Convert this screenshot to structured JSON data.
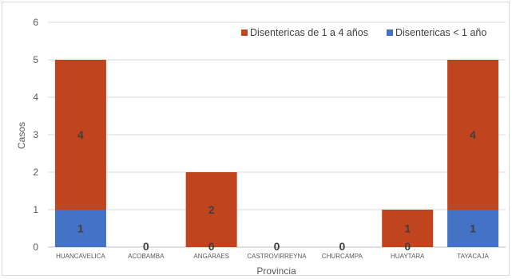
{
  "chart_data": {
    "type": "bar",
    "stacked": true,
    "categories": [
      "HUANCAVELICA",
      "ACOBAMBA",
      "ANGARAES",
      "CASTROVIRREYNA",
      "CHURCAMPA",
      "HUAYTARA",
      "TAYACAJA"
    ],
    "series": [
      {
        "name": "Disentericas < 1 año",
        "values": [
          1,
          0,
          0,
          0,
          0,
          0,
          1
        ],
        "color": "#4472c4"
      },
      {
        "name": "Disentericas de 1 a 4 años",
        "values": [
          4,
          0,
          2,
          0,
          0,
          1,
          4
        ],
        "color": "#c0451f"
      }
    ],
    "xlabel": "Provincia",
    "ylabel": "Casos",
    "ylim": [
      0,
      6
    ],
    "yticks": [
      0,
      1,
      2,
      3,
      4,
      5,
      6
    ],
    "grid": true,
    "legend_position": "top-right",
    "data_label_color": "#404040"
  }
}
